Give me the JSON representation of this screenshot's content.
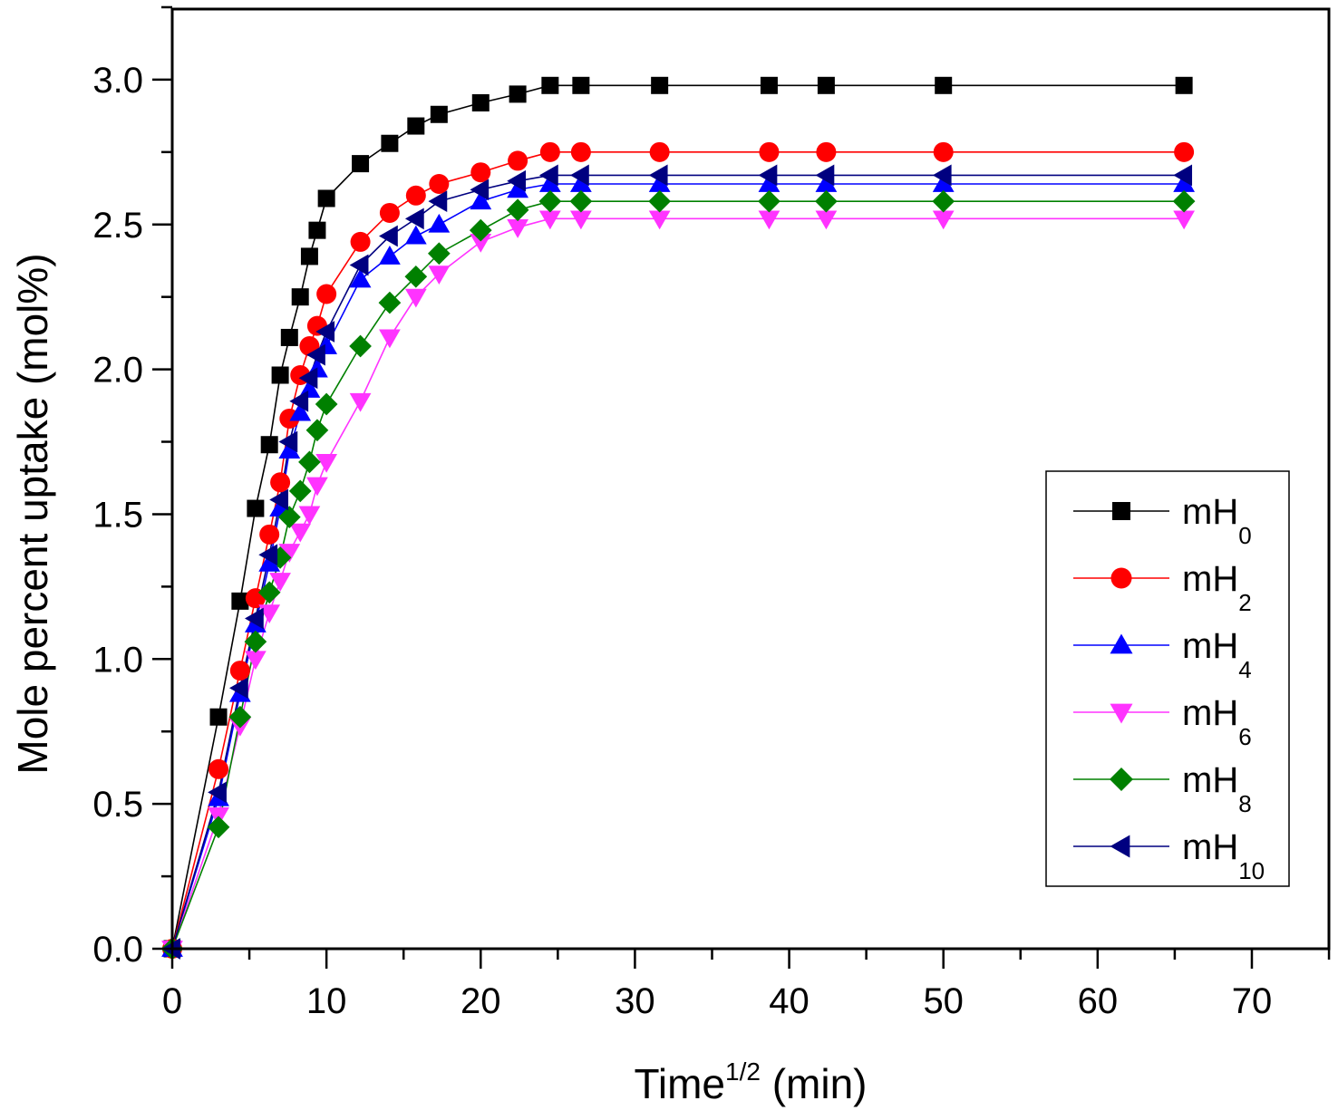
{
  "chart_data": {
    "type": "line",
    "title": "",
    "xlabel": "Time",
    "xlabel_superscript": "1/2",
    "xlabel_suffix": " (min)",
    "ylabel": "Mole percent uptake (mol%)",
    "xlim": [
      0,
      75
    ],
    "ylim": [
      0,
      3.25
    ],
    "xticks": [
      0,
      10,
      20,
      30,
      40,
      50,
      60,
      70
    ],
    "xtick_labels": [
      "0",
      "10",
      "20",
      "30",
      "40",
      "50",
      "60",
      "70"
    ],
    "yticks": [
      0.0,
      0.5,
      1.0,
      1.5,
      2.0,
      2.5,
      3.0
    ],
    "ytick_labels": [
      "0.0",
      "0.5",
      "1.0",
      "1.5",
      "2.0",
      "2.5",
      "3.0"
    ],
    "grid": false,
    "legend_position": "right",
    "series": [
      {
        "name": "mH0",
        "label_main": "mH",
        "label_sub": "0",
        "color": "#000000",
        "marker": "square",
        "x": [
          0,
          3.0,
          4.4,
          5.4,
          6.3,
          7.0,
          7.6,
          8.3,
          8.9,
          9.4,
          10.0,
          12.2,
          14.1,
          15.8,
          17.3,
          20.0,
          22.4,
          24.5,
          26.5,
          31.6,
          38.7,
          42.4,
          50.0,
          65.6
        ],
        "y": [
          0,
          0.8,
          1.2,
          1.52,
          1.74,
          1.98,
          2.11,
          2.25,
          2.39,
          2.48,
          2.59,
          2.71,
          2.78,
          2.84,
          2.88,
          2.92,
          2.95,
          2.98,
          2.98,
          2.98,
          2.98,
          2.98,
          2.98,
          2.98
        ]
      },
      {
        "name": "mH2",
        "label_main": "mH",
        "label_sub": "2",
        "color": "#ff0000",
        "marker": "circle",
        "x": [
          0,
          3.0,
          4.4,
          5.4,
          6.3,
          7.0,
          7.6,
          8.3,
          8.9,
          9.4,
          10.0,
          12.2,
          14.1,
          15.8,
          17.3,
          20.0,
          22.4,
          24.5,
          26.5,
          31.6,
          38.7,
          42.4,
          50.0,
          65.6
        ],
        "y": [
          0,
          0.62,
          0.96,
          1.21,
          1.43,
          1.61,
          1.83,
          1.98,
          2.08,
          2.15,
          2.26,
          2.44,
          2.54,
          2.6,
          2.64,
          2.68,
          2.72,
          2.75,
          2.75,
          2.75,
          2.75,
          2.75,
          2.75,
          2.75
        ]
      },
      {
        "name": "mH4",
        "label_main": "mH",
        "label_sub": "4",
        "color": "#0000ff",
        "marker": "triangle-up",
        "x": [
          0,
          3.0,
          4.4,
          5.4,
          6.3,
          7.0,
          7.6,
          8.3,
          8.9,
          9.4,
          10.0,
          12.2,
          14.1,
          15.8,
          17.3,
          20.0,
          22.4,
          24.5,
          26.5,
          31.6,
          38.7,
          42.4,
          50.0,
          65.6
        ],
        "y": [
          0,
          0.52,
          0.88,
          1.12,
          1.33,
          1.52,
          1.72,
          1.85,
          1.93,
          2.0,
          2.08,
          2.31,
          2.39,
          2.46,
          2.5,
          2.58,
          2.62,
          2.64,
          2.64,
          2.64,
          2.64,
          2.64,
          2.64,
          2.64
        ]
      },
      {
        "name": "mH6",
        "label_main": "mH",
        "label_sub": "6",
        "color": "#ff33ff",
        "marker": "triangle-down",
        "x": [
          0,
          3.0,
          4.4,
          5.4,
          6.3,
          7.0,
          7.6,
          8.3,
          8.9,
          9.4,
          10.0,
          12.2,
          14.1,
          15.8,
          17.3,
          20.0,
          22.4,
          24.5,
          26.5,
          31.6,
          38.7,
          42.4,
          50.0,
          65.6
        ],
        "y": [
          0,
          0.46,
          0.77,
          1.0,
          1.16,
          1.27,
          1.37,
          1.44,
          1.5,
          1.6,
          1.68,
          1.89,
          2.11,
          2.25,
          2.33,
          2.44,
          2.49,
          2.52,
          2.52,
          2.52,
          2.52,
          2.52,
          2.52,
          2.52
        ]
      },
      {
        "name": "mH8",
        "label_main": "mH",
        "label_sub": "8",
        "color": "#008000",
        "marker": "diamond",
        "x": [
          0,
          3.0,
          4.4,
          5.4,
          6.3,
          7.0,
          7.6,
          8.3,
          8.9,
          9.4,
          10.0,
          12.2,
          14.1,
          15.8,
          17.3,
          20.0,
          22.4,
          24.5,
          26.5,
          31.6,
          38.7,
          42.4,
          50.0,
          65.6
        ],
        "y": [
          0,
          0.42,
          0.8,
          1.06,
          1.23,
          1.35,
          1.49,
          1.58,
          1.68,
          1.79,
          1.88,
          2.08,
          2.23,
          2.32,
          2.4,
          2.48,
          2.55,
          2.58,
          2.58,
          2.58,
          2.58,
          2.58,
          2.58,
          2.58
        ]
      },
      {
        "name": "mH10",
        "label_main": "mH",
        "label_sub": "10",
        "color": "#000080",
        "marker": "triangle-left",
        "x": [
          0,
          3.0,
          4.4,
          5.4,
          6.3,
          7.0,
          7.6,
          8.3,
          8.9,
          9.4,
          10.0,
          12.2,
          14.1,
          15.8,
          17.3,
          20.0,
          22.4,
          24.5,
          26.5,
          31.6,
          38.7,
          42.4,
          50.0,
          65.6
        ],
        "y": [
          0,
          0.54,
          0.9,
          1.14,
          1.36,
          1.55,
          1.75,
          1.89,
          1.97,
          2.05,
          2.13,
          2.36,
          2.46,
          2.52,
          2.58,
          2.62,
          2.65,
          2.67,
          2.67,
          2.67,
          2.67,
          2.67,
          2.67,
          2.67
        ]
      }
    ]
  }
}
